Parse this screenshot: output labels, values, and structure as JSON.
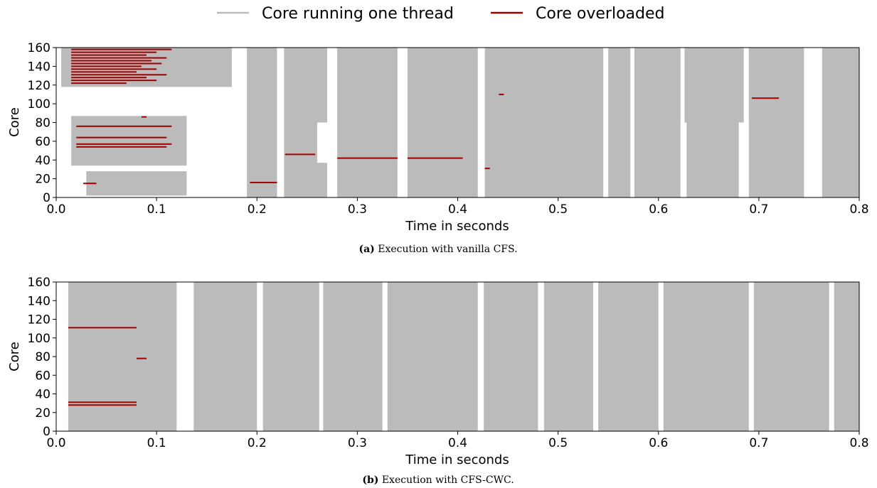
{
  "legend": {
    "placement": "top-center",
    "items": [
      {
        "label": "Core running one thread",
        "color": "#bbbbbb"
      },
      {
        "label": "Core overloaded",
        "color": "#a00000"
      }
    ]
  },
  "colors": {
    "thread": "#bbbbbb",
    "overloaded": "#a00000",
    "background": "#ffffff"
  },
  "chart_data": [
    {
      "type": "heatmap",
      "panel": "a",
      "caption_label": "(a)",
      "caption_text": "Execution with vanilla CFS.",
      "xlabel": "Time in seconds",
      "ylabel": "Core",
      "xlim": [
        0.0,
        0.8
      ],
      "ylim": [
        0,
        160
      ],
      "xticks": [
        "0.0",
        "0.1",
        "0.2",
        "0.3",
        "0.4",
        "0.5",
        "0.6",
        "0.7",
        "0.8"
      ],
      "yticks": [
        "0",
        "20",
        "40",
        "60",
        "80",
        "100",
        "120",
        "140",
        "160"
      ],
      "busy_blocks": [
        {
          "x": [
            0.005,
            0.175
          ],
          "cores": [
            118,
            160
          ]
        },
        {
          "x": [
            0.015,
            0.13
          ],
          "cores": [
            34,
            87
          ]
        },
        {
          "x": [
            0.03,
            0.13
          ],
          "cores": [
            2,
            28
          ]
        },
        {
          "x": [
            0.19,
            0.22
          ],
          "cores": [
            0,
            160
          ]
        },
        {
          "x": [
            0.227,
            0.27
          ],
          "cores": [
            0,
            160
          ]
        },
        {
          "x": [
            0.28,
            0.34
          ],
          "cores": [
            0,
            160
          ]
        },
        {
          "x": [
            0.35,
            0.42
          ],
          "cores": [
            0,
            160
          ]
        },
        {
          "x": [
            0.427,
            0.545
          ],
          "cores": [
            0,
            160
          ]
        },
        {
          "x": [
            0.55,
            0.572
          ],
          "cores": [
            0,
            160
          ]
        },
        {
          "x": [
            0.576,
            0.622
          ],
          "cores": [
            0,
            160
          ]
        },
        {
          "x": [
            0.626,
            0.685
          ],
          "cores": [
            0,
            160
          ]
        },
        {
          "x": [
            0.69,
            0.745
          ],
          "cores": [
            0,
            160
          ]
        },
        {
          "x": [
            0.763,
            0.8
          ],
          "cores": [
            0,
            160
          ]
        }
      ],
      "idle_gaps": [
        {
          "x": [
            0.26,
            0.278
          ],
          "cores": [
            37,
            80
          ]
        },
        {
          "x": [
            0.622,
            0.628
          ],
          "cores": [
            0,
            80
          ]
        },
        {
          "x": [
            0.68,
            0.69
          ],
          "cores": [
            0,
            80
          ]
        }
      ],
      "overloaded_segments": [
        {
          "x": [
            0.015,
            0.115
          ],
          "core": 158
        },
        {
          "x": [
            0.015,
            0.1
          ],
          "core": 155
        },
        {
          "x": [
            0.015,
            0.09
          ],
          "core": 152
        },
        {
          "x": [
            0.015,
            0.11
          ],
          "core": 149
        },
        {
          "x": [
            0.015,
            0.095
          ],
          "core": 146
        },
        {
          "x": [
            0.015,
            0.105
          ],
          "core": 143
        },
        {
          "x": [
            0.015,
            0.085
          ],
          "core": 140
        },
        {
          "x": [
            0.015,
            0.1
          ],
          "core": 137
        },
        {
          "x": [
            0.015,
            0.08
          ],
          "core": 134
        },
        {
          "x": [
            0.015,
            0.11
          ],
          "core": 131
        },
        {
          "x": [
            0.015,
            0.09
          ],
          "core": 128
        },
        {
          "x": [
            0.015,
            0.1
          ],
          "core": 125
        },
        {
          "x": [
            0.015,
            0.07
          ],
          "core": 122
        },
        {
          "x": [
            0.02,
            0.115
          ],
          "core": 76
        },
        {
          "x": [
            0.02,
            0.11
          ],
          "core": 64
        },
        {
          "x": [
            0.02,
            0.115
          ],
          "core": 57
        },
        {
          "x": [
            0.02,
            0.11
          ],
          "core": 54
        },
        {
          "x": [
            0.085,
            0.09
          ],
          "core": 86
        },
        {
          "x": [
            0.027,
            0.04
          ],
          "core": 15
        },
        {
          "x": [
            0.193,
            0.22
          ],
          "core": 16
        },
        {
          "x": [
            0.228,
            0.258
          ],
          "core": 46
        },
        {
          "x": [
            0.28,
            0.34
          ],
          "core": 42
        },
        {
          "x": [
            0.35,
            0.405
          ],
          "core": 42
        },
        {
          "x": [
            0.693,
            0.72
          ],
          "core": 106
        },
        {
          "x": [
            0.441,
            0.446
          ],
          "core": 110
        },
        {
          "x": [
            0.427,
            0.432
          ],
          "core": 31
        }
      ]
    },
    {
      "type": "heatmap",
      "panel": "b",
      "caption_label": "(b)",
      "caption_text": "Execution with CFS-CWC.",
      "xlabel": "Time in seconds",
      "ylabel": "Core",
      "xlim": [
        0.0,
        0.8
      ],
      "ylim": [
        0,
        160
      ],
      "xticks": [
        "0.0",
        "0.1",
        "0.2",
        "0.3",
        "0.4",
        "0.5",
        "0.6",
        "0.7",
        "0.8"
      ],
      "yticks": [
        "0",
        "20",
        "40",
        "60",
        "80",
        "100",
        "120",
        "140",
        "160"
      ],
      "busy_blocks": [
        {
          "x": [
            0.012,
            0.12
          ],
          "cores": [
            0,
            160
          ]
        },
        {
          "x": [
            0.137,
            0.2
          ],
          "cores": [
            0,
            160
          ]
        },
        {
          "x": [
            0.206,
            0.262
          ],
          "cores": [
            0,
            160
          ]
        },
        {
          "x": [
            0.266,
            0.325
          ],
          "cores": [
            0,
            160
          ]
        },
        {
          "x": [
            0.33,
            0.42
          ],
          "cores": [
            0,
            160
          ]
        },
        {
          "x": [
            0.426,
            0.48
          ],
          "cores": [
            0,
            160
          ]
        },
        {
          "x": [
            0.486,
            0.535
          ],
          "cores": [
            0,
            160
          ]
        },
        {
          "x": [
            0.54,
            0.6
          ],
          "cores": [
            0,
            160
          ]
        },
        {
          "x": [
            0.605,
            0.69
          ],
          "cores": [
            0,
            160
          ]
        },
        {
          "x": [
            0.695,
            0.77
          ],
          "cores": [
            0,
            160
          ]
        },
        {
          "x": [
            0.775,
            0.8
          ],
          "cores": [
            0,
            160
          ]
        }
      ],
      "idle_gaps": [],
      "overloaded_segments": [
        {
          "x": [
            0.012,
            0.08
          ],
          "core": 111
        },
        {
          "x": [
            0.08,
            0.09
          ],
          "core": 78
        },
        {
          "x": [
            0.012,
            0.08
          ],
          "core": 31
        },
        {
          "x": [
            0.012,
            0.08
          ],
          "core": 28
        }
      ]
    }
  ]
}
